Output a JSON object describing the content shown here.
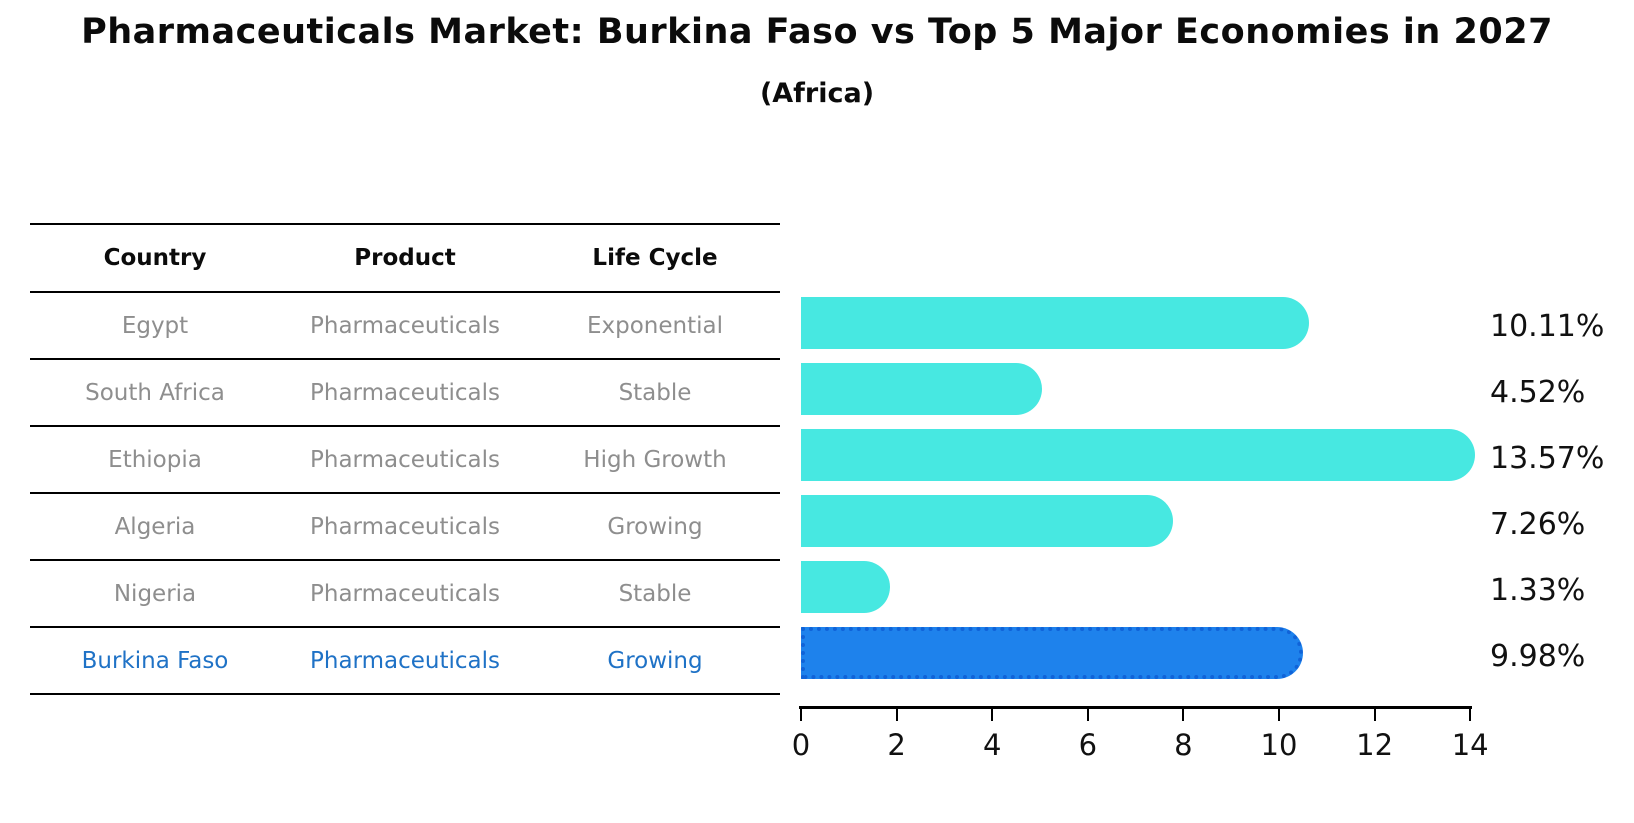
{
  "header": {
    "title": "Pharmaceuticals Market: Burkina Faso vs Top 5 Major Economies in 2027",
    "subtitle": "(Africa)"
  },
  "table": {
    "columns": [
      "Country",
      "Product",
      "Life Cycle"
    ],
    "rows": [
      {
        "country": "Egypt",
        "product": "Pharmaceuticals",
        "life_cycle": "Exponential",
        "highlight": false
      },
      {
        "country": "South Africa",
        "product": "Pharmaceuticals",
        "life_cycle": "Stable",
        "highlight": false
      },
      {
        "country": "Ethiopia",
        "product": "Pharmaceuticals",
        "life_cycle": "High Growth",
        "highlight": false
      },
      {
        "country": "Algeria",
        "product": "Pharmaceuticals",
        "life_cycle": "Growing",
        "highlight": false
      },
      {
        "country": "Nigeria",
        "product": "Pharmaceuticals",
        "life_cycle": "Stable",
        "highlight": false
      },
      {
        "country": "Burkina Faso",
        "product": "Pharmaceuticals",
        "life_cycle": "Growing",
        "highlight": true
      }
    ]
  },
  "chart_data": {
    "type": "bar",
    "orientation": "horizontal",
    "title": "Pharmaceuticals Market: Burkina Faso vs Top 5 Major Economies in 2027",
    "subtitle": "(Africa)",
    "categories": [
      "Egypt",
      "South Africa",
      "Ethiopia",
      "Algeria",
      "Nigeria",
      "Burkina Faso"
    ],
    "values": [
      10.11,
      4.52,
      13.57,
      7.26,
      1.33,
      9.98
    ],
    "value_labels": [
      "10.11%",
      "4.52%",
      "13.57%",
      "7.26%",
      "1.33%",
      "9.98%"
    ],
    "highlight_index": 5,
    "xlim": [
      0,
      14
    ],
    "x_ticks": [
      "0",
      "2",
      "4",
      "6",
      "8",
      "10",
      "12",
      "14"
    ],
    "grid": "off",
    "legend": "none",
    "colors": {
      "bar_default": "#47e8e1",
      "bar_highlight": "#1e82ec",
      "bar_highlight_border": "#1063d8",
      "highlight_text": "#1f72c6",
      "table_text": "#8e8e8e",
      "axis_text": "#111111"
    }
  }
}
